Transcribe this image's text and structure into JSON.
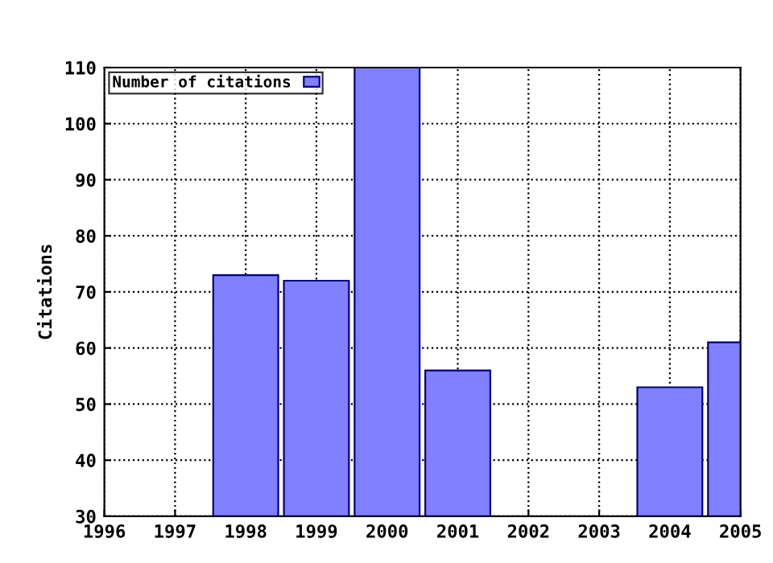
{
  "chart_data": {
    "type": "bar",
    "ylabel": "Citations",
    "x": [
      1998,
      1999,
      2000,
      2001,
      2004,
      2005
    ],
    "series": [
      {
        "name": "Number of citations",
        "color": "#8080ff",
        "values": [
          73,
          72,
          110,
          56,
          53,
          61
        ]
      }
    ],
    "xlim": [
      1996,
      2005
    ],
    "xticks": [
      1996,
      1997,
      1998,
      1999,
      2000,
      2001,
      2002,
      2003,
      2004,
      2005
    ],
    "ylim": [
      30,
      110
    ],
    "yticks": [
      30,
      40,
      50,
      60,
      70,
      80,
      90,
      100,
      110
    ],
    "grid": true,
    "legend": "top left"
  }
}
